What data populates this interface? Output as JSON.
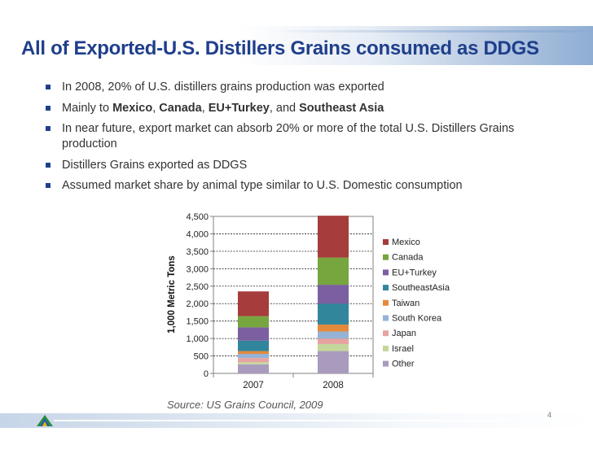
{
  "title": "All of Exported-U.S. Distillers Grains consumed as DDGS",
  "bullets": [
    {
      "segments": [
        {
          "text": "In 2008, 20% of U.S. distillers grains production was exported",
          "bold": false
        }
      ]
    },
    {
      "segments": [
        {
          "text": "Mainly to ",
          "bold": false
        },
        {
          "text": "Mexico",
          "bold": true
        },
        {
          "text": ", ",
          "bold": false
        },
        {
          "text": "Canada",
          "bold": true
        },
        {
          "text": ", ",
          "bold": false
        },
        {
          "text": "EU+Turkey",
          "bold": true
        },
        {
          "text": ", and ",
          "bold": false
        },
        {
          "text": "Southeast Asia",
          "bold": true
        }
      ]
    },
    {
      "segments": [
        {
          "text": "In near future, export market can absorb 20% or more of the total U.S. Distillers Grains production",
          "bold": false
        }
      ]
    },
    {
      "segments": [
        {
          "text": "Distillers Grains exported as DDGS",
          "bold": false
        }
      ]
    },
    {
      "segments": [
        {
          "text": "Assumed market share by animal type similar to U.S. Domestic consumption",
          "bold": false
        }
      ]
    }
  ],
  "source": "Source: US Grains Council, 2009",
  "page_number": "4",
  "chart_data": {
    "type": "bar",
    "stacked": true,
    "categories": [
      "2007",
      "2008"
    ],
    "ylabel": "1,000 Metric Tons",
    "ylim": [
      0,
      4500
    ],
    "yticks": [
      0,
      500,
      1000,
      1500,
      2000,
      2500,
      3000,
      3500,
      4000,
      4500
    ],
    "ytick_labels": [
      "0",
      "500",
      "1,000",
      "1,500",
      "2,000",
      "2,500",
      "3,000",
      "3,500",
      "4,000",
      "4,500"
    ],
    "grid": true,
    "legend_position": "right",
    "series": [
      {
        "name": "Other",
        "color": "#a99bbd",
        "values": [
          260,
          640
        ]
      },
      {
        "name": "Israel",
        "color": "#c4d79b",
        "values": [
          60,
          200
        ]
      },
      {
        "name": "Japan",
        "color": "#e6a3a1",
        "values": [
          120,
          160
        ]
      },
      {
        "name": "South Korea",
        "color": "#95b3d7",
        "values": [
          120,
          200
        ]
      },
      {
        "name": "Taiwan",
        "color": "#e48a3c",
        "values": [
          80,
          200
        ]
      },
      {
        "name": "SoutheastAsia",
        "color": "#31869b",
        "values": [
          300,
          600
        ]
      },
      {
        "name": "EU+Turkey",
        "color": "#7c5fa0",
        "values": [
          380,
          540
        ]
      },
      {
        "name": "Canada",
        "color": "#77a53e",
        "values": [
          320,
          780
        ]
      },
      {
        "name": "Mexico",
        "color": "#a63c3c",
        "values": [
          710,
          1200
        ]
      }
    ],
    "legend_order": [
      "Mexico",
      "Canada",
      "EU+Turkey",
      "SoutheastAsia",
      "Taiwan",
      "South Korea",
      "Japan",
      "Israel",
      "Other"
    ]
  }
}
